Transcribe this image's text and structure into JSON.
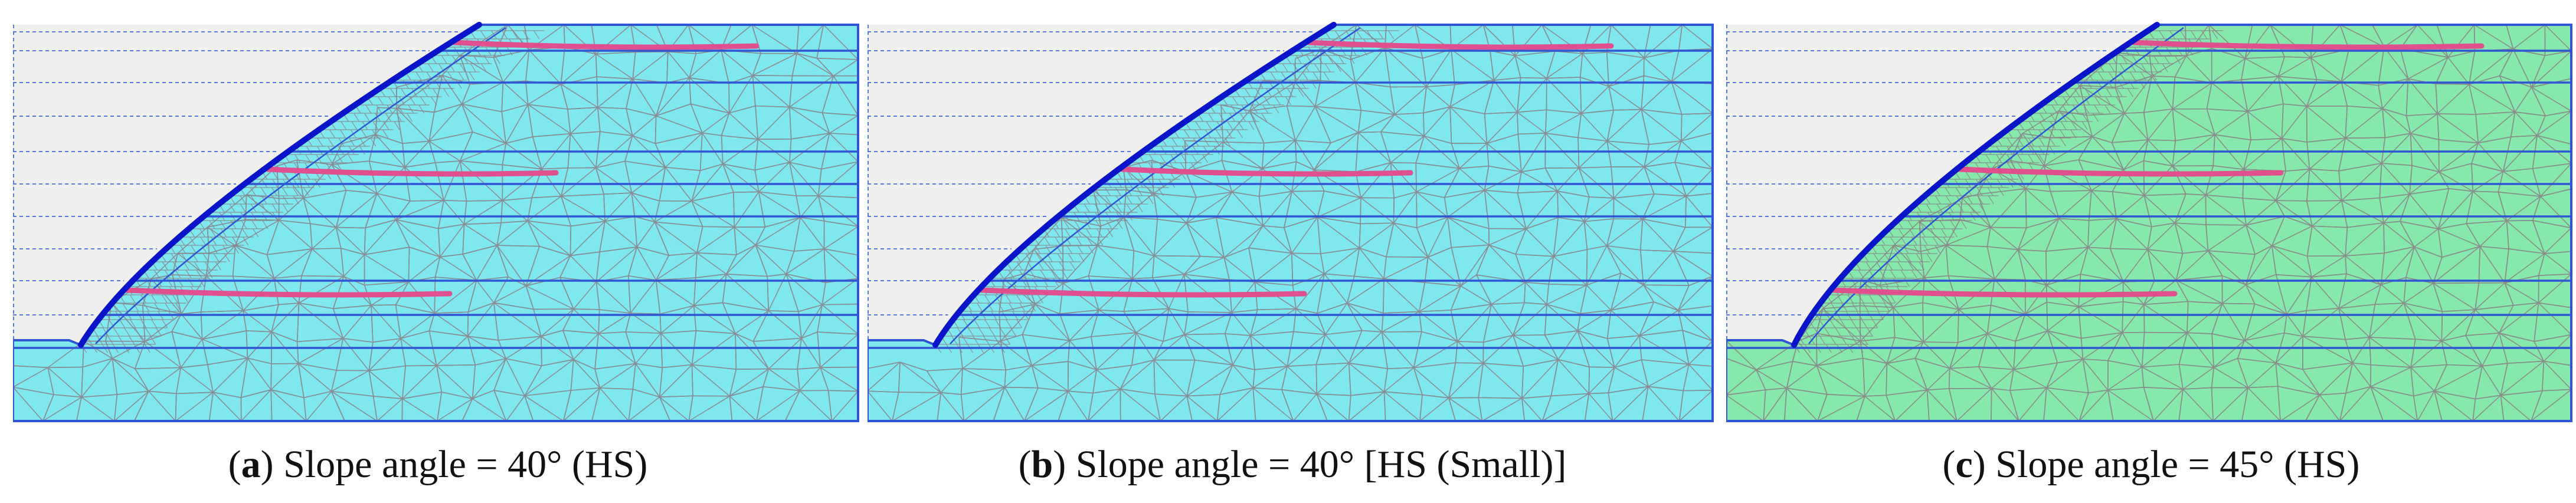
{
  "figure": {
    "panels": [
      {
        "id": "a",
        "letter": "a",
        "caption_rest": " Slope angle = 40° (HS)",
        "soil_color": "#7fe8ee",
        "slope_angle": 40
      },
      {
        "id": "b",
        "letter": "b",
        "caption_rest": " Slope angle = 40° [HS (Small)]",
        "soil_color": "#7fe8ee",
        "slope_angle": 40
      },
      {
        "id": "c",
        "letter": "c",
        "caption_rest": " Slope angle = 45° (HS)",
        "soil_color": "#86e8ac",
        "slope_angle": 45
      }
    ],
    "colors": {
      "boundary": "#2f55d6",
      "mesh": "#8a7f86",
      "nail": "#e0508f",
      "facing": "#0a14c8",
      "excavated": "#efefef",
      "dashed": "#5577e0"
    }
  }
}
